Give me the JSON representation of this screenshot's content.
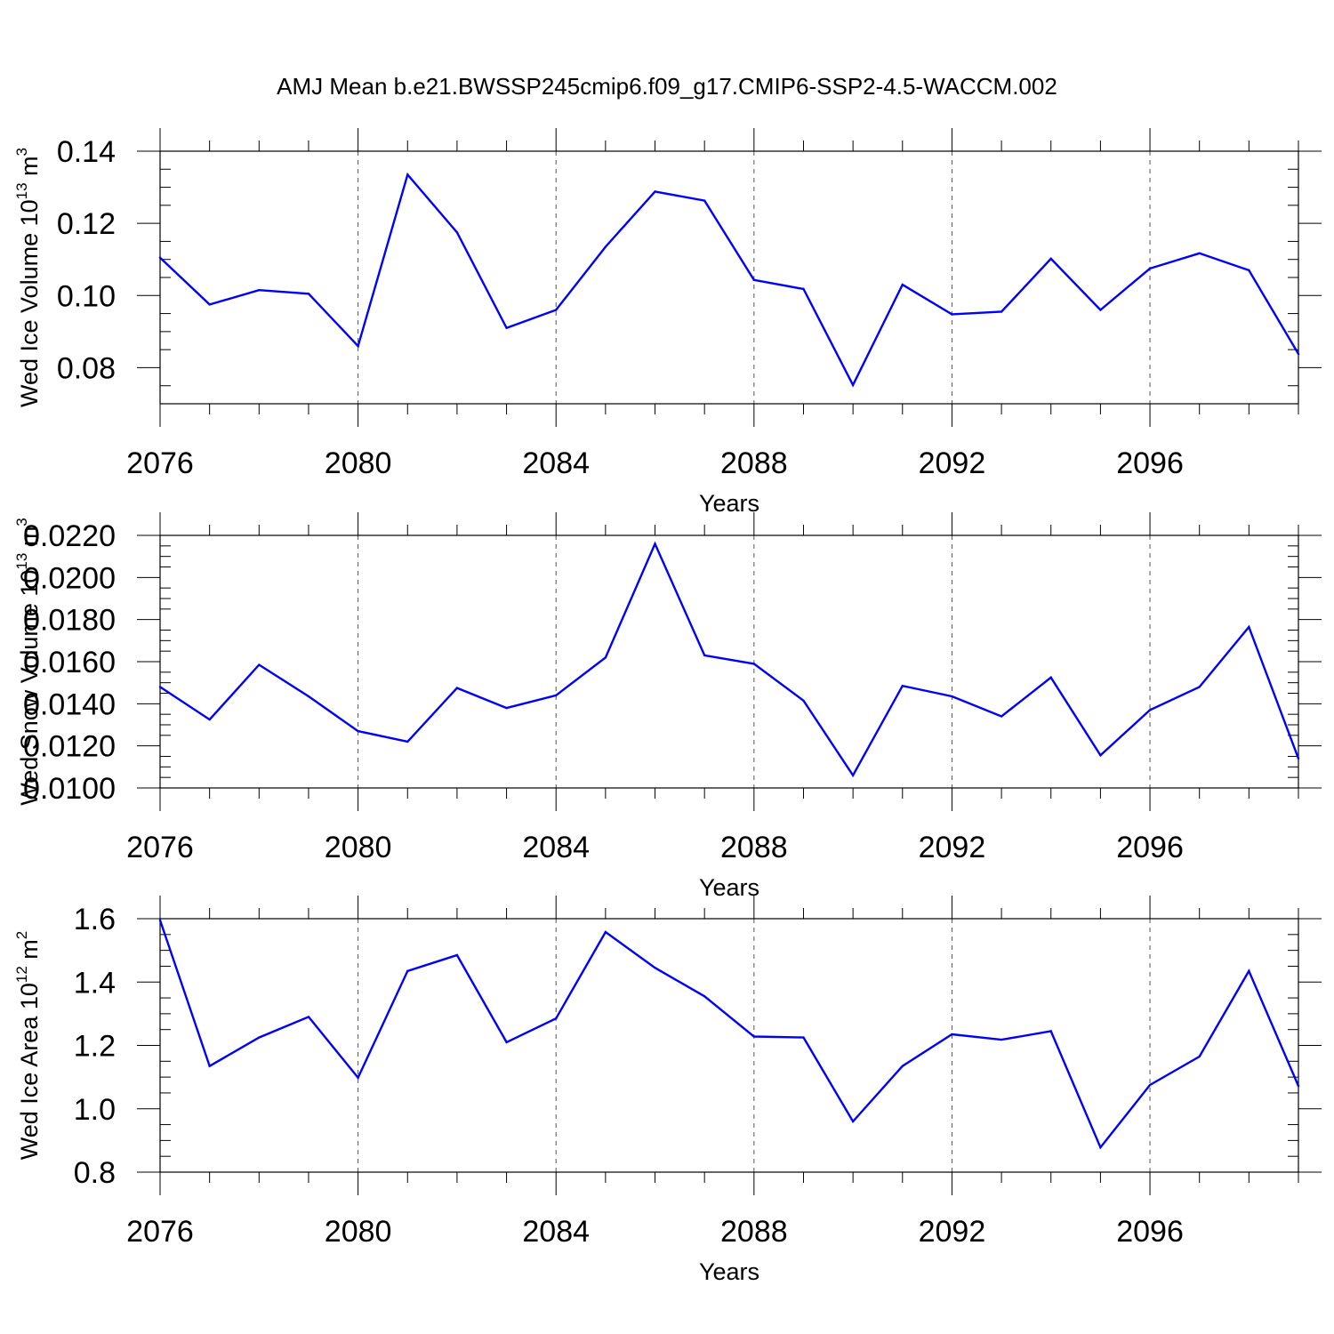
{
  "title": "AMJ Mean b.e21.BWSSP245cmip6.f09_g17.CMIP6-SSP2-4.5-WACCM.002",
  "line_color": "#0000ff",
  "chart_data": [
    {
      "type": "line",
      "title": "",
      "xlabel": "Years",
      "ylabel": {
        "text": "Wed Ice Volume 10",
        "exp": "13",
        "unit": " m",
        "unit_exp": "3"
      },
      "x": [
        2076,
        2077,
        2078,
        2079,
        2080,
        2081,
        2082,
        2083,
        2084,
        2085,
        2086,
        2087,
        2088,
        2089,
        2090,
        2091,
        2092,
        2093,
        2094,
        2095,
        2096,
        2097,
        2098,
        2099
      ],
      "values": [
        0.1105,
        0.0975,
        0.1015,
        0.1005,
        0.086,
        0.1335,
        0.1175,
        0.091,
        0.096,
        0.1135,
        0.1288,
        0.1263,
        0.1043,
        0.1018,
        0.0752,
        0.103,
        0.0948,
        0.0955,
        0.1102,
        0.096,
        0.1075,
        0.1117,
        0.107,
        0.0838
      ],
      "xlim": [
        2076,
        2099
      ],
      "ylim": [
        0.07,
        0.14
      ],
      "yticks": [
        0.08,
        0.1,
        0.12,
        0.14
      ],
      "ytick_labels": [
        "0.08",
        "0.10",
        "0.12",
        "0.14"
      ],
      "yminor_step": 0.005,
      "xticks": [
        2076,
        2080,
        2084,
        2088,
        2092,
        2096
      ],
      "xtick_labels": [
        "2076",
        "2080",
        "2084",
        "2088",
        "2092",
        "2096"
      ],
      "grid": "vertical-dashed"
    },
    {
      "type": "line",
      "title": "",
      "xlabel": "Years",
      "ylabel": {
        "text": "Wed Snow Volume 10",
        "exp": "13",
        "unit": " m",
        "unit_exp": "3"
      },
      "x": [
        2076,
        2077,
        2078,
        2079,
        2080,
        2081,
        2082,
        2083,
        2084,
        2085,
        2086,
        2087,
        2088,
        2089,
        2090,
        2091,
        2092,
        2093,
        2094,
        2095,
        2096,
        2097,
        2098,
        2099
      ],
      "values": [
        0.0148,
        0.01325,
        0.01585,
        0.01435,
        0.0127,
        0.0122,
        0.01475,
        0.0138,
        0.0144,
        0.0162,
        0.0216,
        0.0163,
        0.0159,
        0.01415,
        0.0106,
        0.01485,
        0.01435,
        0.0134,
        0.01525,
        0.01155,
        0.0137,
        0.0148,
        0.01765,
        0.0114
      ],
      "xlim": [
        2076,
        2099
      ],
      "ylim": [
        0.01,
        0.022
      ],
      "yticks": [
        0.01,
        0.012,
        0.014,
        0.016,
        0.018,
        0.02,
        0.022
      ],
      "ytick_labels": [
        "0.0100",
        "0.0120",
        "0.0140",
        "0.0160",
        "0.0180",
        "0.0200",
        "0.0220"
      ],
      "yminor_step": 0.0005,
      "xticks": [
        2076,
        2080,
        2084,
        2088,
        2092,
        2096
      ],
      "xtick_labels": [
        "2076",
        "2080",
        "2084",
        "2088",
        "2092",
        "2096"
      ],
      "grid": "vertical-dashed"
    },
    {
      "type": "line",
      "title": "",
      "xlabel": "Years",
      "ylabel": {
        "text": "Wed Ice Area 10",
        "exp": "12",
        "unit": " m",
        "unit_exp": "2"
      },
      "x": [
        2076,
        2077,
        2078,
        2079,
        2080,
        2081,
        2082,
        2083,
        2084,
        2085,
        2086,
        2087,
        2088,
        2089,
        2090,
        2091,
        2092,
        2093,
        2094,
        2095,
        2096,
        2097,
        2098,
        2099
      ],
      "values": [
        1.595,
        1.135,
        1.225,
        1.29,
        1.098,
        1.435,
        1.485,
        1.21,
        1.285,
        1.558,
        1.445,
        1.355,
        1.228,
        1.225,
        0.96,
        1.135,
        1.235,
        1.218,
        1.245,
        0.878,
        1.075,
        1.165,
        1.435,
        1.072
      ],
      "xlim": [
        2076,
        2099
      ],
      "ylim": [
        0.8,
        1.6
      ],
      "yticks": [
        0.8,
        1.0,
        1.2,
        1.4,
        1.6
      ],
      "ytick_labels": [
        "0.8",
        "1.0",
        "1.2",
        "1.4",
        "1.6"
      ],
      "yminor_step": 0.05,
      "xticks": [
        2076,
        2080,
        2084,
        2088,
        2092,
        2096
      ],
      "xtick_labels": [
        "2076",
        "2080",
        "2084",
        "2088",
        "2092",
        "2096"
      ],
      "grid": "vertical-dashed"
    }
  ]
}
